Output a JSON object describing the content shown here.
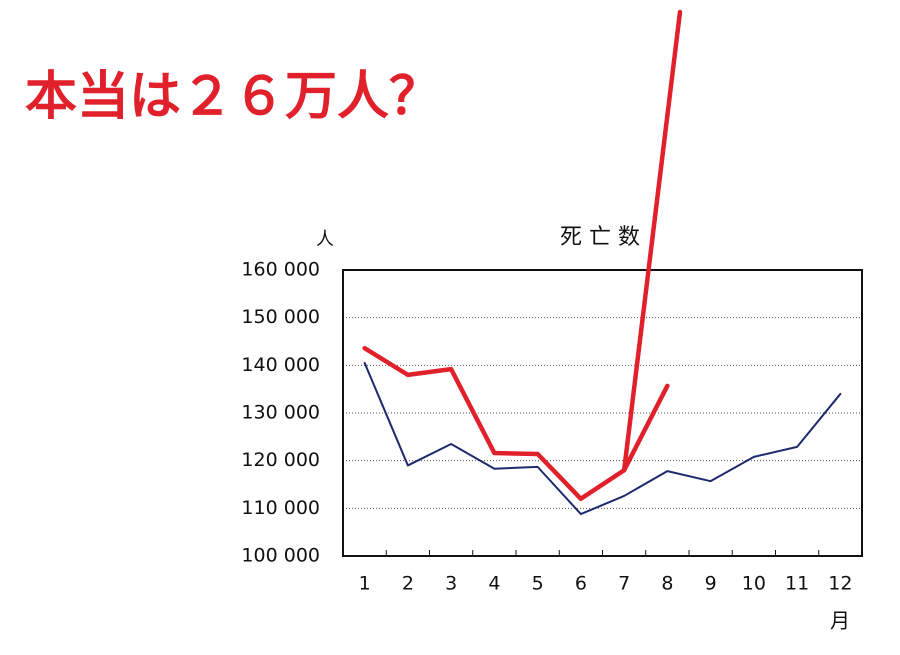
{
  "headline": "本当は２６万人？",
  "chart_data": {
    "type": "line",
    "title": "死 亡 数",
    "y_unit": "人",
    "x_unit": "月",
    "categories": [
      "1",
      "2",
      "3",
      "4",
      "5",
      "6",
      "7",
      "8",
      "9",
      "10",
      "11",
      "12"
    ],
    "series": [
      {
        "color": "#1f2a6e",
        "values": [
          140500,
          119000,
          123500,
          118300,
          118700,
          108800,
          112600,
          117800,
          115700,
          120800,
          122900,
          134000
        ]
      },
      {
        "color": "#e0202a",
        "values": [
          143600,
          138000,
          139200,
          121600,
          121400,
          112000,
          118000,
          135700,
          null,
          null,
          null,
          null
        ]
      }
    ],
    "ylim": [
      100000,
      160000
    ],
    "yticks": [
      {
        "value": 100000,
        "label": "100 000"
      },
      {
        "value": 110000,
        "label": "110 000"
      },
      {
        "value": 120000,
        "label": "120 000"
      },
      {
        "value": 130000,
        "label": "130 000"
      },
      {
        "value": 140000,
        "label": "140 000"
      },
      {
        "value": 150000,
        "label": "150 000"
      },
      {
        "value": 160000,
        "label": "160 000"
      }
    ],
    "grid": true
  }
}
